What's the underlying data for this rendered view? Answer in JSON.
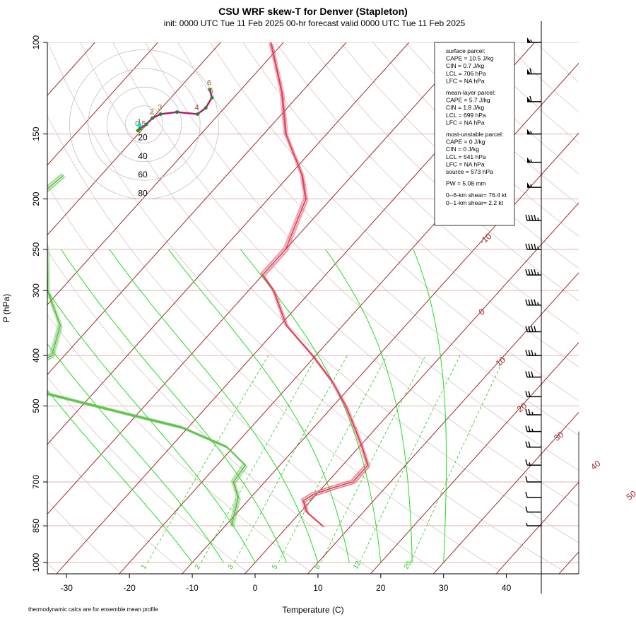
{
  "chart_data": {
    "type": "skew-t",
    "title": "CSU WRF skew-T for Denver (Stapleton)",
    "subtitle": "init: 0000 UTC Tue 11 Feb 2025     00-hr forecast valid 0000 UTC Tue 11 Feb 2025",
    "xlabel": "Temperature (C)",
    "ylabel": "P (hPa)",
    "footnote": "thermodynamic calcs are for ensemble mean profile",
    "x_ticks": [
      "-30",
      "-20",
      "-10",
      "0",
      "10",
      "20",
      "30",
      "40"
    ],
    "pressure_ticks": [
      "100",
      "150",
      "200",
      "250",
      "300",
      "400",
      "500",
      "700",
      "850",
      "1000"
    ],
    "pressure_scale": "log",
    "isotherm_labels": [
      "-10",
      "0",
      "10",
      "20",
      "30",
      "40",
      "50"
    ],
    "mixing_ratio_labels": [
      "1",
      "2",
      "3",
      "5",
      "8",
      "12",
      "20"
    ],
    "hodograph_ring_labels": [
      "20",
      "40",
      "60",
      "80"
    ],
    "hodograph_point_labels": [
      "0.5",
      "1",
      "2",
      "3",
      "4",
      "5",
      "6"
    ],
    "colors": {
      "temperature": "#e0405a",
      "dewpoint": "#5cc046",
      "isotherm": "#a02828",
      "isobar": "#e0b0b0",
      "adiabat_moist": "#22dd22",
      "mixing_ratio": "#22cc22",
      "hodograph": "#b0197a",
      "barbs": "#000000"
    },
    "temperature_profile": [
      {
        "p": 850,
        "t": 5.5
      },
      {
        "p": 800,
        "t": 1.0
      },
      {
        "p": 760,
        "t": -1.2
      },
      {
        "p": 740,
        "t": -0.5
      },
      {
        "p": 720,
        "t": 1.5
      },
      {
        "p": 700,
        "t": 4.0
      },
      {
        "p": 650,
        "t": 4.0
      },
      {
        "p": 600,
        "t": 0.5
      },
      {
        "p": 550,
        "t": -3.5
      },
      {
        "p": 500,
        "t": -8.0
      },
      {
        "p": 450,
        "t": -13.5
      },
      {
        "p": 400,
        "t": -20.5
      },
      {
        "p": 350,
        "t": -29.0
      },
      {
        "p": 300,
        "t": -36.0
      },
      {
        "p": 280,
        "t": -40.0
      },
      {
        "p": 250,
        "t": -40.0
      },
      {
        "p": 200,
        "t": -44.0
      },
      {
        "p": 180,
        "t": -48.0
      },
      {
        "p": 150,
        "t": -56.5
      },
      {
        "p": 125,
        "t": -63.0
      },
      {
        "p": 100,
        "t": -72.0
      }
    ],
    "dewpoint_profile": [
      {
        "p": 850,
        "t": -9.0
      },
      {
        "p": 750,
        "t": -12.0
      },
      {
        "p": 700,
        "t": -15.0
      },
      {
        "p": 650,
        "t": -15.5
      },
      {
        "p": 600,
        "t": -21.0
      },
      {
        "p": 550,
        "t": -31.0
      },
      {
        "p": 520,
        "t": -41.0
      },
      {
        "p": 480,
        "t": -55.0
      },
      {
        "p": 450,
        "t": -66.0
      },
      {
        "p": 400,
        "t": -62.0
      },
      {
        "p": 350,
        "t": -65.0
      },
      {
        "p": 300,
        "t": -72.0
      },
      {
        "p": 250,
        "t": -78.0
      },
      {
        "p": 200,
        "t": -87.0
      },
      {
        "p": 180,
        "t": -86.0
      }
    ],
    "wind_profile": [
      {
        "p": 100,
        "barb_kt": 55
      },
      {
        "p": 115,
        "barb_kt": 60
      },
      {
        "p": 130,
        "barb_kt": 60
      },
      {
        "p": 150,
        "barb_kt": 55
      },
      {
        "p": 170,
        "barb_kt": 55
      },
      {
        "p": 190,
        "barb_kt": 55
      },
      {
        "p": 220,
        "barb_kt": 45
      },
      {
        "p": 250,
        "barb_kt": 45
      },
      {
        "p": 280,
        "barb_kt": 45
      },
      {
        "p": 320,
        "barb_kt": 45
      },
      {
        "p": 360,
        "barb_kt": 40
      },
      {
        "p": 400,
        "barb_kt": 35
      },
      {
        "p": 440,
        "barb_kt": 30
      },
      {
        "p": 480,
        "barb_kt": 20
      },
      {
        "p": 520,
        "barb_kt": 25
      },
      {
        "p": 560,
        "barb_kt": 25
      },
      {
        "p": 600,
        "barb_kt": 20
      },
      {
        "p": 650,
        "barb_kt": 15
      },
      {
        "p": 700,
        "barb_kt": 10
      },
      {
        "p": 750,
        "barb_kt": 10
      },
      {
        "p": 800,
        "barb_kt": 10
      },
      {
        "p": 850,
        "barb_kt": 5
      }
    ],
    "hodograph": [
      {
        "u": -3,
        "v": -3
      },
      {
        "u": -2,
        "v": -2
      },
      {
        "u": 1,
        "v": 0
      },
      {
        "u": 4,
        "v": 3
      },
      {
        "u": 8,
        "v": 5
      },
      {
        "u": 16,
        "v": 6
      },
      {
        "u": 26,
        "v": 5
      },
      {
        "u": 30,
        "v": 8
      },
      {
        "u": 33,
        "v": 13
      },
      {
        "u": 32,
        "v": 17
      }
    ],
    "stats_box": [
      "surface parcel:",
      "CAPE = 10.5 J/kg",
      "CIN = 0.7 J/kg",
      "LCL = 706 hPa",
      "LFC = NA hPa",
      "",
      "mean-layer parcel:",
      "CAPE = 5.7 J/kg",
      "CIN = 1.8 J/kg",
      "LCL = 699 hPa",
      "LFC = NA hPa",
      "",
      "most-unstable parcel:",
      "CAPE = 0 J/kg",
      "CIN = 0 J/kg",
      "LCL = 541 hPa",
      "LFC = NA hPa",
      "source = 573 hPa",
      "",
      "PW =  5.08 mm",
      "",
      "0--6-km shear= 76.4 kt",
      "0--1-km shear= 2.2 kt"
    ]
  }
}
